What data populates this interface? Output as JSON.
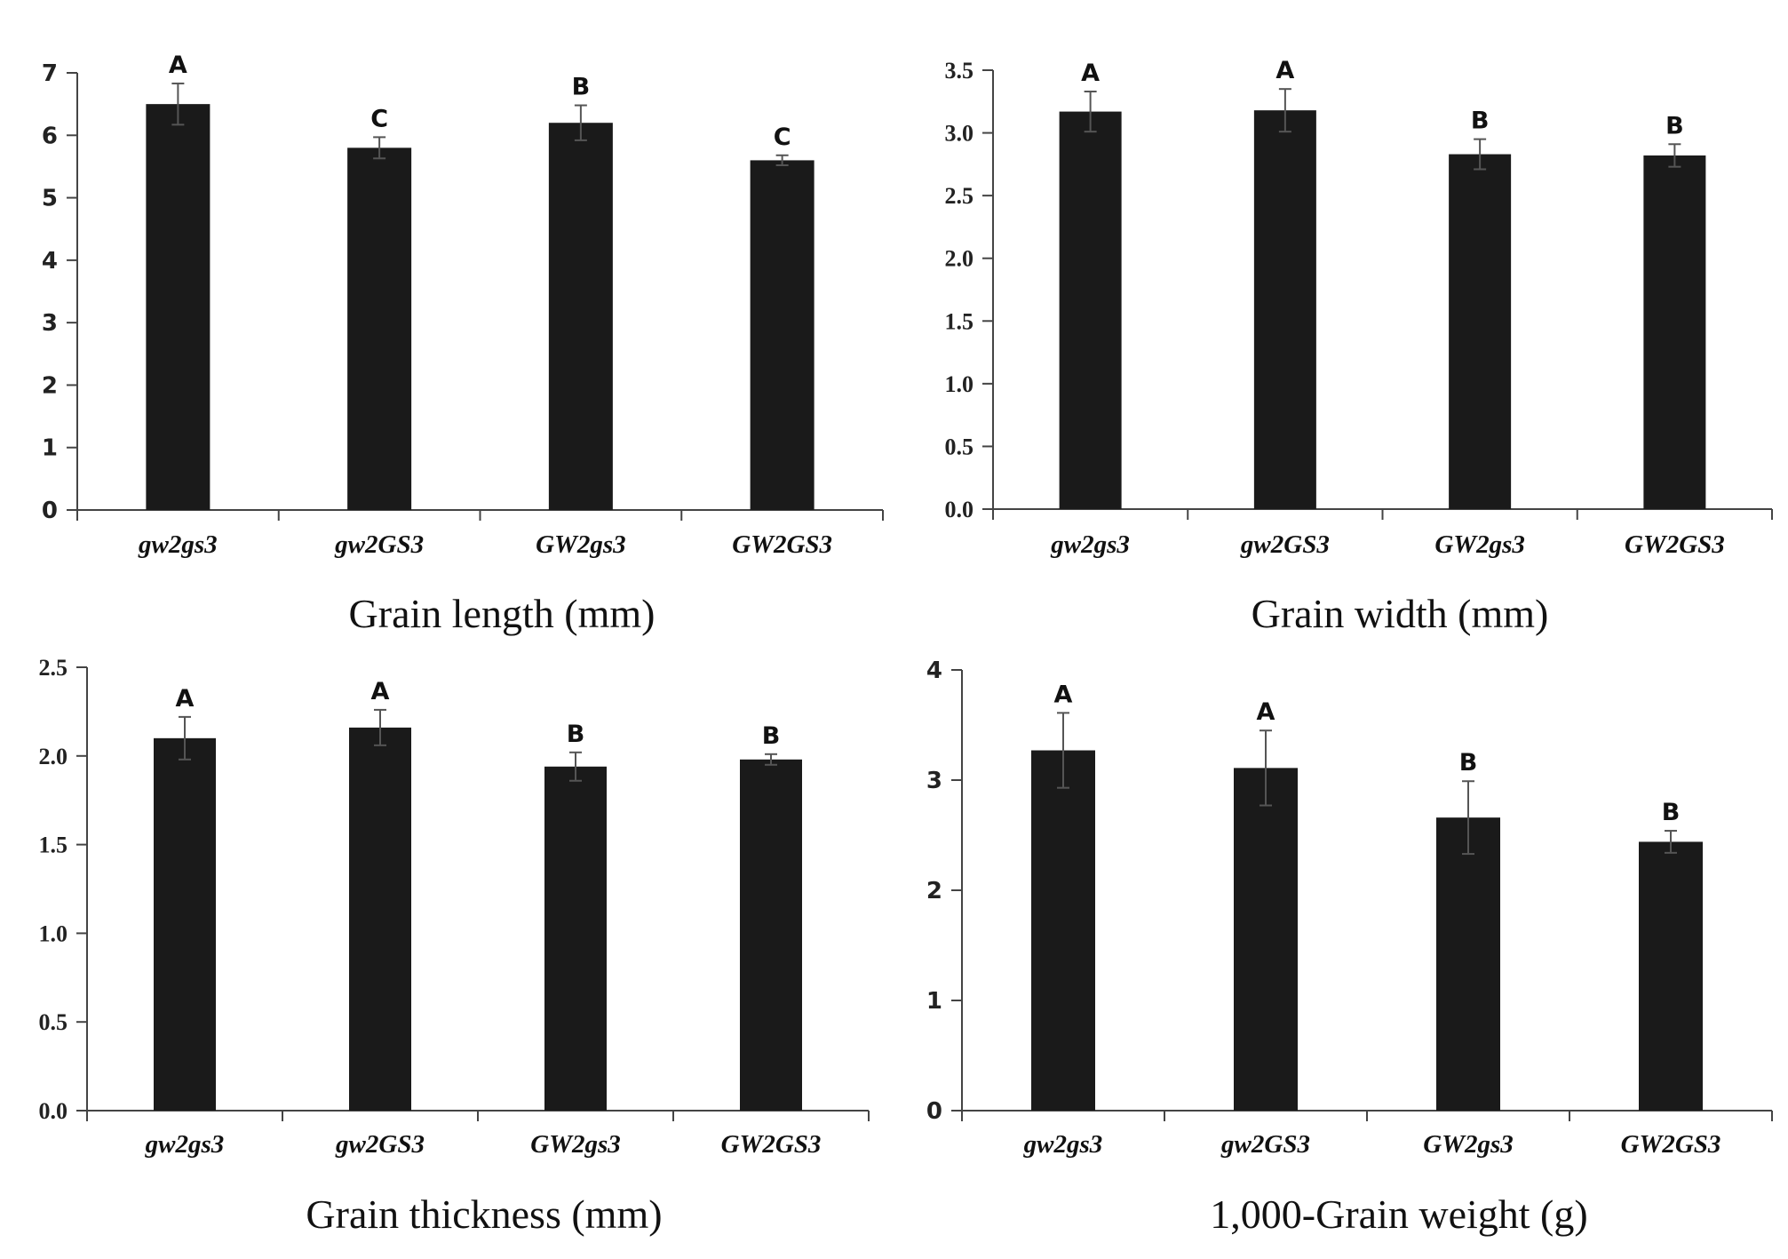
{
  "chart_data": [
    {
      "type": "bar",
      "title": "Grain length (mm)",
      "categories": [
        "gw2gs3",
        "gw2GS3",
        "GW2gs3",
        "GW2GS3"
      ],
      "values": [
        6.5,
        5.8,
        6.2,
        5.6
      ],
      "errors": [
        0.33,
        0.17,
        0.28,
        0.08
      ],
      "significance": [
        "A",
        "C",
        "B",
        "C"
      ],
      "ylim": [
        0,
        7
      ],
      "yticks": [
        "0",
        "1",
        "2",
        "3",
        "4",
        "5",
        "6",
        "7"
      ],
      "ytick_values": [
        0,
        1,
        2,
        3,
        4,
        5,
        6,
        7
      ]
    },
    {
      "type": "bar",
      "title": "Grain width (mm)",
      "categories": [
        "gw2gs3",
        "gw2GS3",
        "GW2gs3",
        "GW2GS3"
      ],
      "values": [
        3.17,
        3.18,
        2.83,
        2.82
      ],
      "errors": [
        0.16,
        0.17,
        0.12,
        0.09
      ],
      "significance": [
        "A",
        "A",
        "B",
        "B"
      ],
      "ylim": [
        0,
        3.5
      ],
      "yticks": [
        "0.0",
        "0.5",
        "1.0",
        "1.5",
        "2.0",
        "2.5",
        "3.0",
        "3.5"
      ],
      "ytick_values": [
        0,
        0.5,
        1.0,
        1.5,
        2.0,
        2.5,
        3.0,
        3.5
      ]
    },
    {
      "type": "bar",
      "title": "Grain thickness (mm)",
      "categories": [
        "gw2gs3",
        "gw2GS3",
        "GW2gs3",
        "GW2GS3"
      ],
      "values": [
        2.1,
        2.16,
        1.94,
        1.98
      ],
      "errors": [
        0.12,
        0.1,
        0.08,
        0.03
      ],
      "significance": [
        "A",
        "A",
        "B",
        "B"
      ],
      "ylim": [
        0,
        2.5
      ],
      "yticks": [
        "0.0",
        "0.5",
        "1.0",
        "1.5",
        "2.0",
        "2.5"
      ],
      "ytick_values": [
        0,
        0.5,
        1.0,
        1.5,
        2.0,
        2.5
      ]
    },
    {
      "type": "bar",
      "title": "1,000-Grain weight (g)",
      "categories": [
        "gw2gs3",
        "gw2GS3",
        "GW2gs3",
        "GW2GS3"
      ],
      "values": [
        3.27,
        3.11,
        2.66,
        2.44
      ],
      "errors": [
        0.34,
        0.34,
        0.33,
        0.1
      ],
      "significance": [
        "A",
        "A",
        "B",
        "B"
      ],
      "ylim": [
        0,
        4
      ],
      "yticks": [
        "0",
        "1",
        "2",
        "3",
        "4"
      ],
      "ytick_values": [
        0,
        1,
        2,
        3,
        4
      ]
    }
  ]
}
